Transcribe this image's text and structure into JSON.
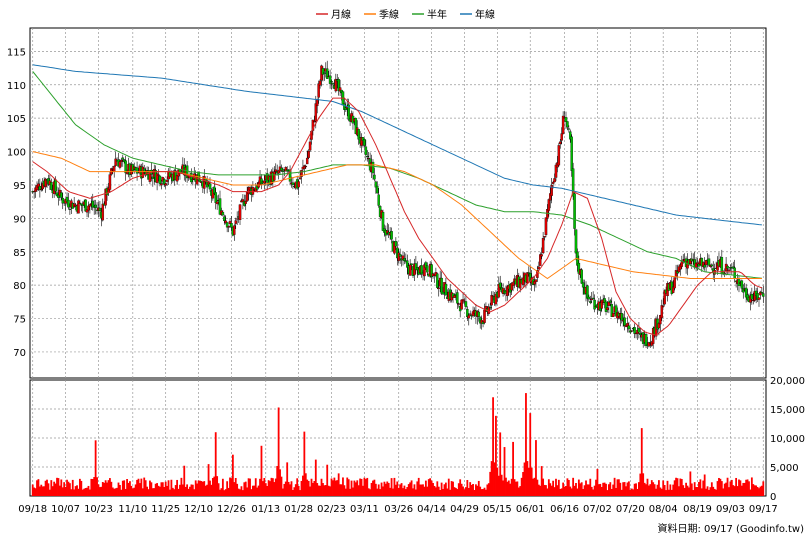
{
  "legend": [
    {
      "label": "月線",
      "color": "#d62728"
    },
    {
      "label": "季線",
      "color": "#ff7f0e"
    },
    {
      "label": "半年",
      "color": "#2ca02c"
    },
    {
      "label": "年線",
      "color": "#1f77b4"
    }
  ],
  "footer": {
    "source": "資料日期: 09/17  (Goodinfo.tw)"
  },
  "chart_data": [
    {
      "type": "candlestick",
      "ylim": [
        67,
        117
      ],
      "yticks": [
        70,
        75,
        80,
        85,
        90,
        95,
        100,
        105,
        110,
        115
      ],
      "x_tick_labels": [
        "09/18",
        "10/07",
        "10/23",
        "11/10",
        "11/25",
        "12/10",
        "12/26",
        "01/13",
        "01/28",
        "02/23",
        "03/11",
        "03/26",
        "04/14",
        "04/29",
        "05/15",
        "06/01",
        "06/16",
        "07/02",
        "07/20",
        "08/04",
        "08/19",
        "09/03",
        "09/17"
      ],
      "colors": {
        "up": "#e00000",
        "down": "#00bb00"
      },
      "close_anchors": [
        [
          0,
          94
        ],
        [
          10,
          96
        ],
        [
          20,
          93
        ],
        [
          30,
          92
        ],
        [
          40,
          92
        ],
        [
          48,
          91
        ],
        [
          58,
          99
        ],
        [
          68,
          97
        ],
        [
          80,
          97
        ],
        [
          92,
          96
        ],
        [
          105,
          97
        ],
        [
          118,
          96
        ],
        [
          130,
          92
        ],
        [
          140,
          88
        ],
        [
          150,
          94
        ],
        [
          165,
          96
        ],
        [
          175,
          97
        ],
        [
          185,
          95
        ],
        [
          192,
          99
        ],
        [
          196,
          104
        ],
        [
          202,
          112
        ],
        [
          210,
          111
        ],
        [
          218,
          107
        ],
        [
          225,
          104
        ],
        [
          232,
          100
        ],
        [
          238,
          97
        ],
        [
          245,
          89
        ],
        [
          252,
          86
        ],
        [
          260,
          83
        ],
        [
          268,
          82
        ],
        [
          275,
          83
        ],
        [
          285,
          80
        ],
        [
          295,
          78
        ],
        [
          305,
          76
        ],
        [
          315,
          75
        ],
        [
          325,
          79
        ],
        [
          335,
          80
        ],
        [
          345,
          81
        ],
        [
          352,
          80
        ],
        [
          358,
          88
        ],
        [
          363,
          95
        ],
        [
          368,
          100
        ],
        [
          372,
          106
        ],
        [
          376,
          101
        ],
        [
          380,
          84
        ],
        [
          388,
          78
        ],
        [
          398,
          77
        ],
        [
          408,
          76
        ],
        [
          418,
          74
        ],
        [
          425,
          72
        ],
        [
          432,
          72
        ],
        [
          438,
          75
        ],
        [
          443,
          79
        ],
        [
          448,
          80
        ],
        [
          455,
          84
        ],
        [
          462,
          83
        ],
        [
          470,
          83
        ],
        [
          480,
          83
        ],
        [
          490,
          82
        ],
        [
          498,
          79
        ],
        [
          505,
          78
        ],
        [
          511,
          79
        ]
      ],
      "ma_month": [
        [
          0,
          98.5
        ],
        [
          10,
          97
        ],
        [
          25,
          94
        ],
        [
          40,
          93
        ],
        [
          55,
          94
        ],
        [
          70,
          96
        ],
        [
          85,
          97
        ],
        [
          100,
          97
        ],
        [
          115,
          96
        ],
        [
          130,
          95
        ],
        [
          140,
          94
        ],
        [
          150,
          94
        ],
        [
          160,
          94
        ],
        [
          172,
          95
        ],
        [
          180,
          97
        ],
        [
          190,
          101
        ],
        [
          200,
          105
        ],
        [
          210,
          108
        ],
        [
          218,
          108
        ],
        [
          228,
          106
        ],
        [
          240,
          101
        ],
        [
          250,
          96
        ],
        [
          260,
          91
        ],
        [
          270,
          87
        ],
        [
          280,
          84
        ],
        [
          290,
          81
        ],
        [
          300,
          79
        ],
        [
          310,
          77
        ],
        [
          320,
          76
        ],
        [
          330,
          77
        ],
        [
          340,
          79
        ],
        [
          350,
          81
        ],
        [
          360,
          84
        ],
        [
          370,
          89
        ],
        [
          378,
          94
        ],
        [
          388,
          93
        ],
        [
          398,
          87
        ],
        [
          408,
          79
        ],
        [
          418,
          75
        ],
        [
          428,
          73
        ],
        [
          436,
          72.5
        ],
        [
          445,
          74
        ],
        [
          455,
          77
        ],
        [
          465,
          80
        ],
        [
          475,
          82
        ],
        [
          485,
          82
        ],
        [
          495,
          82
        ],
        [
          505,
          80
        ],
        [
          511,
          79.5
        ]
      ],
      "ma_quarter": [
        [
          0,
          100
        ],
        [
          20,
          99
        ],
        [
          40,
          97
        ],
        [
          60,
          97
        ],
        [
          80,
          97
        ],
        [
          100,
          97
        ],
        [
          120,
          96
        ],
        [
          140,
          95
        ],
        [
          160,
          95
        ],
        [
          180,
          96
        ],
        [
          200,
          97
        ],
        [
          220,
          98
        ],
        [
          240,
          98
        ],
        [
          260,
          97
        ],
        [
          280,
          95
        ],
        [
          300,
          92
        ],
        [
          320,
          88
        ],
        [
          340,
          84
        ],
        [
          360,
          81
        ],
        [
          380,
          84
        ],
        [
          400,
          83
        ],
        [
          420,
          82
        ],
        [
          440,
          81.5
        ],
        [
          460,
          81
        ],
        [
          480,
          81
        ],
        [
          500,
          81
        ],
        [
          511,
          81
        ]
      ],
      "ma_half": [
        [
          0,
          112
        ],
        [
          15,
          108
        ],
        [
          30,
          104
        ],
        [
          50,
          101
        ],
        [
          70,
          99
        ],
        [
          90,
          98
        ],
        [
          110,
          97
        ],
        [
          130,
          96.5
        ],
        [
          150,
          96.5
        ],
        [
          170,
          96.5
        ],
        [
          190,
          97
        ],
        [
          210,
          98
        ],
        [
          230,
          98
        ],
        [
          250,
          97.5
        ],
        [
          270,
          96
        ],
        [
          290,
          94
        ],
        [
          310,
          92
        ],
        [
          330,
          91
        ],
        [
          350,
          91
        ],
        [
          370,
          90.5
        ],
        [
          390,
          89
        ],
        [
          410,
          87
        ],
        [
          430,
          85
        ],
        [
          450,
          84
        ],
        [
          470,
          82
        ],
        [
          490,
          81.5
        ],
        [
          511,
          81
        ]
      ],
      "ma_year": [
        [
          0,
          113
        ],
        [
          30,
          112
        ],
        [
          60,
          111.5
        ],
        [
          90,
          111
        ],
        [
          120,
          110
        ],
        [
          150,
          109
        ],
        [
          170,
          108.5
        ],
        [
          190,
          108
        ],
        [
          210,
          107.5
        ],
        [
          230,
          106
        ],
        [
          250,
          104
        ],
        [
          270,
          102
        ],
        [
          290,
          100
        ],
        [
          310,
          98
        ],
        [
          330,
          96
        ],
        [
          350,
          95
        ],
        [
          370,
          94.5
        ],
        [
          390,
          93.5
        ],
        [
          410,
          92.5
        ],
        [
          430,
          91.5
        ],
        [
          450,
          90.5
        ],
        [
          470,
          90
        ],
        [
          490,
          89.5
        ],
        [
          511,
          89
        ]
      ]
    },
    {
      "type": "bar",
      "series_name": "volume",
      "ylim": [
        0,
        20000
      ],
      "yticks": [
        0,
        5000,
        10000,
        15000,
        20000
      ],
      "ytick_labels": [
        "0",
        "5,000",
        "10,000",
        "15,000",
        "20,000"
      ],
      "color": "#ff0000",
      "spikes": [
        [
          44,
          10000
        ],
        [
          106,
          5500
        ],
        [
          123,
          6000
        ],
        [
          128,
          11500
        ],
        [
          140,
          8000
        ],
        [
          160,
          9000
        ],
        [
          172,
          16000
        ],
        [
          178,
          6000
        ],
        [
          190,
          12000
        ],
        [
          198,
          7000
        ],
        [
          206,
          6000
        ],
        [
          214,
          4000
        ],
        [
          322,
          20000
        ],
        [
          324,
          15000
        ],
        [
          327,
          12000
        ],
        [
          330,
          9000
        ],
        [
          336,
          9500
        ],
        [
          345,
          20000
        ],
        [
          348,
          15000
        ],
        [
          352,
          10000
        ],
        [
          356,
          6000
        ],
        [
          395,
          5000
        ],
        [
          426,
          12000
        ],
        [
          460,
          4500
        ],
        [
          470,
          4000
        ]
      ]
    }
  ]
}
